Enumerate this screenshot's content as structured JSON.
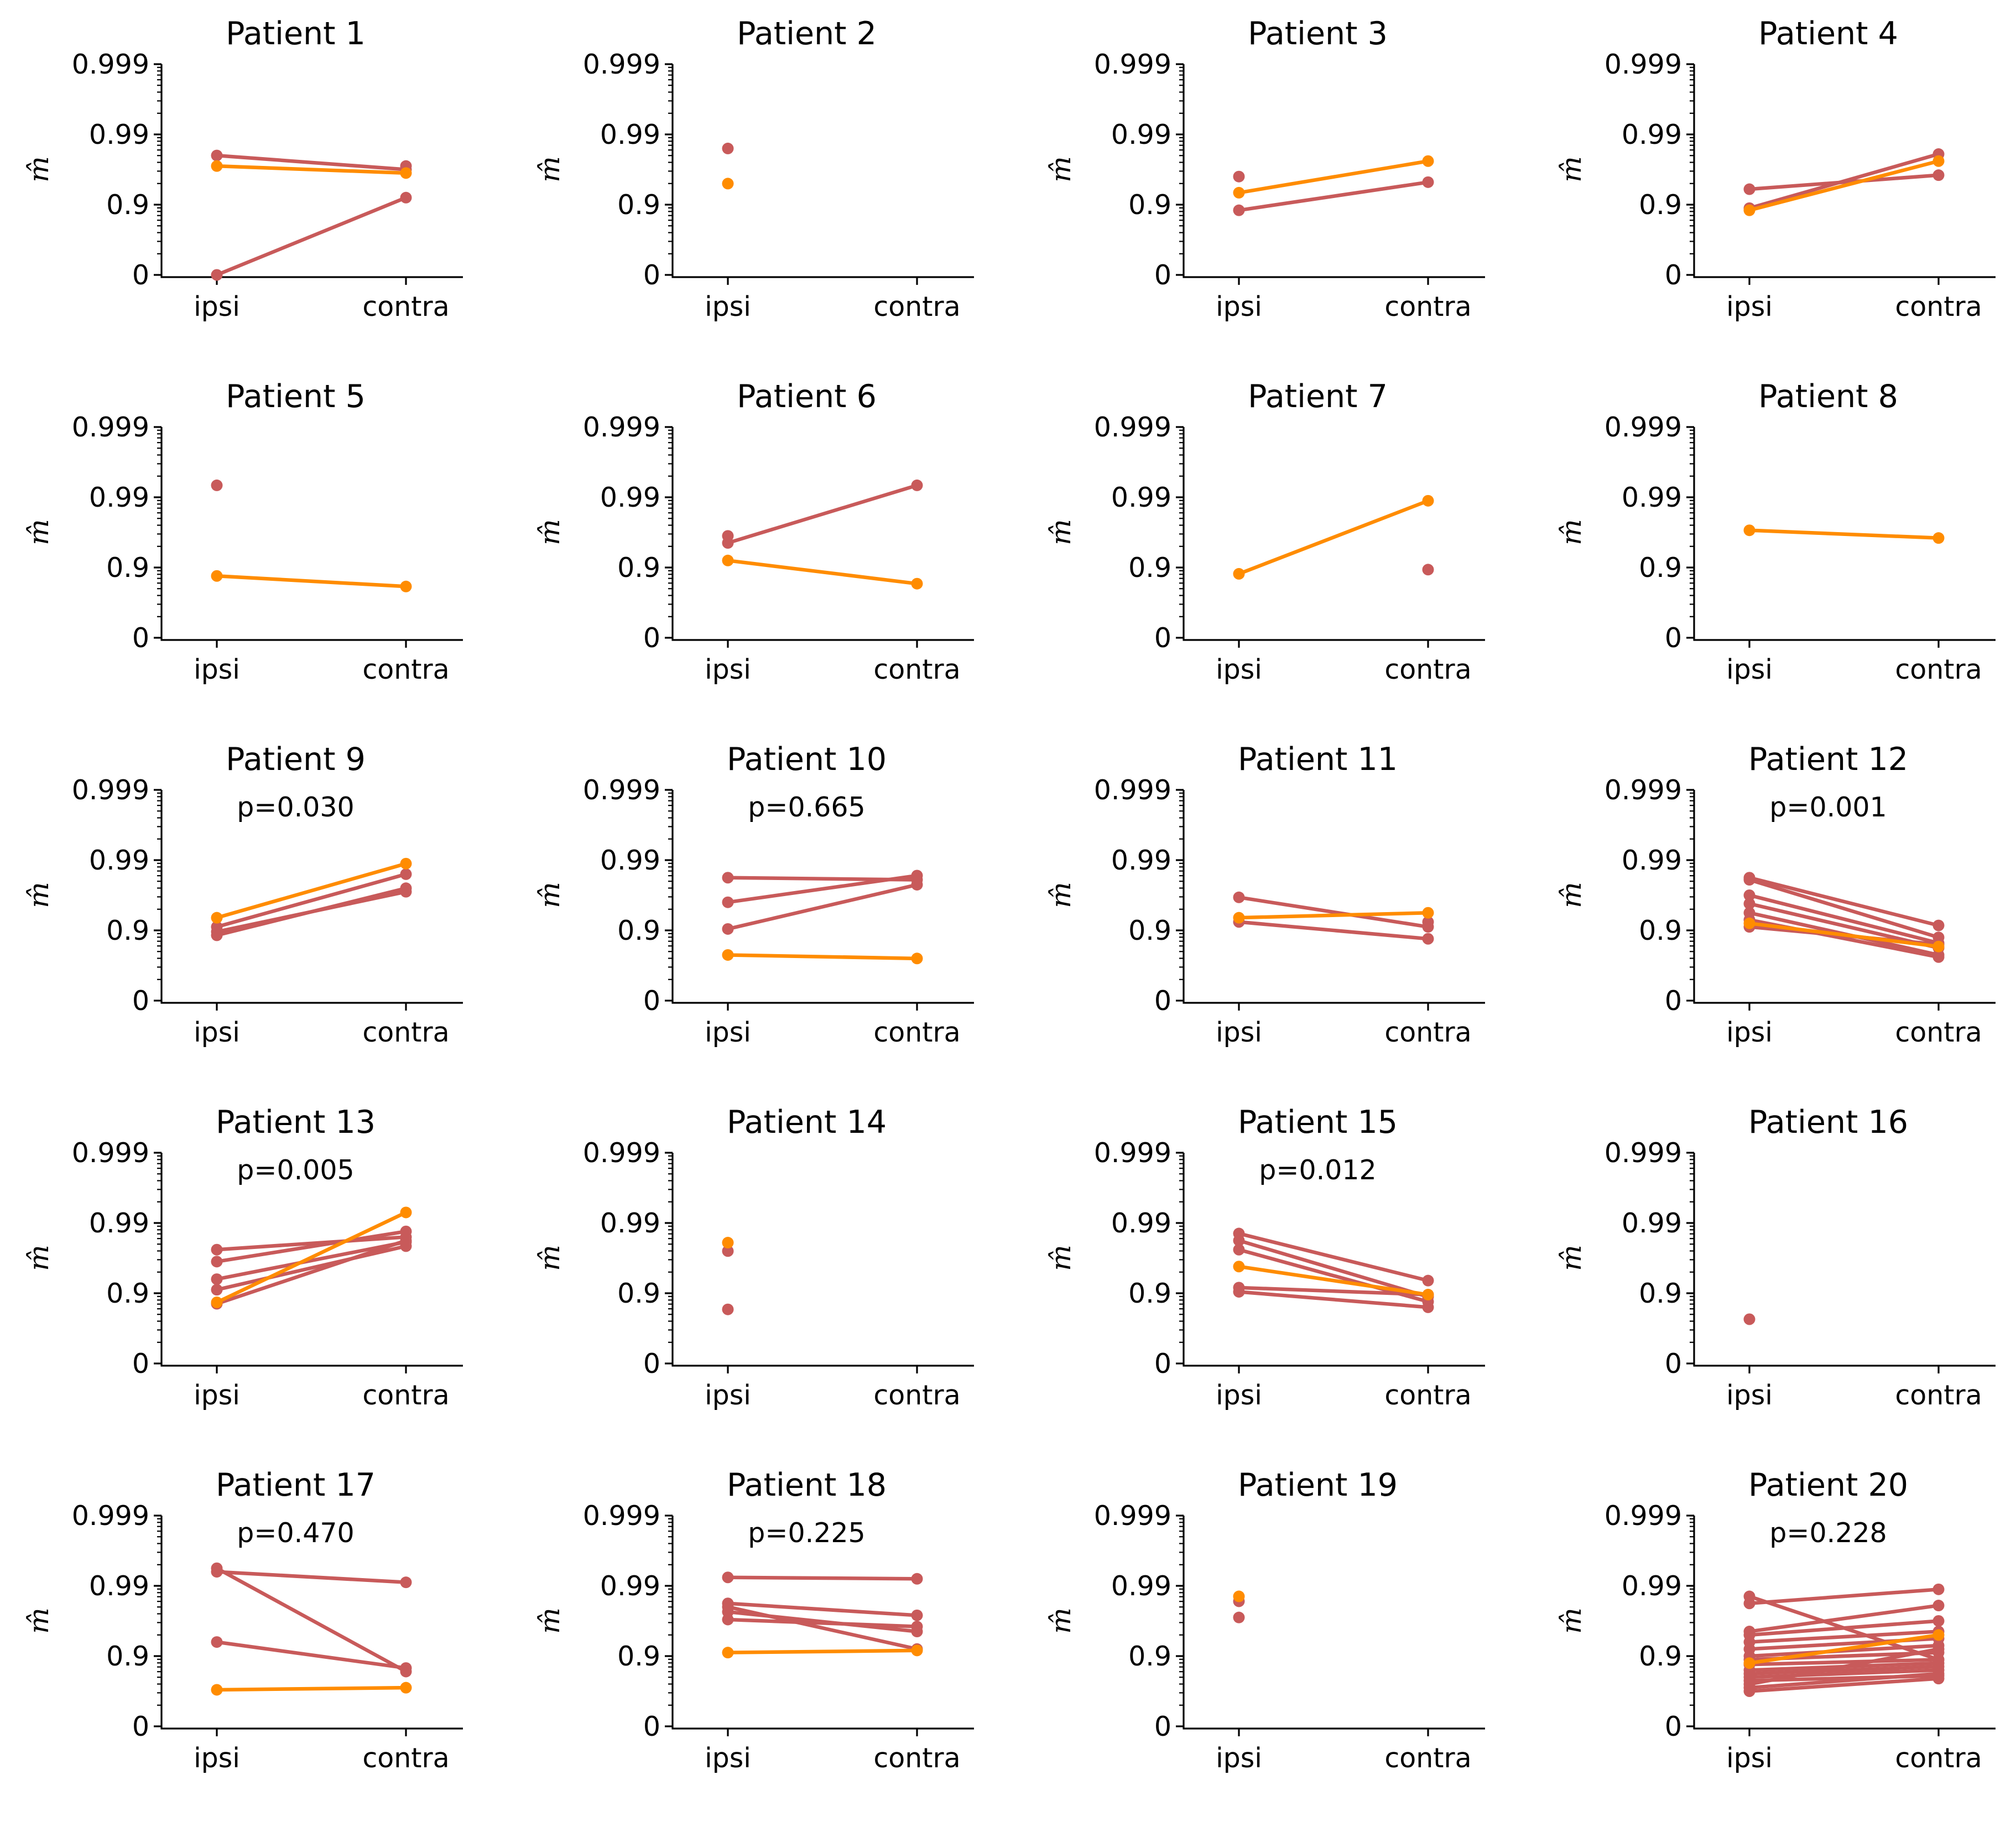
{
  "figure": {
    "y_ticks": [
      "0.999",
      "0.99",
      "0.9",
      "0"
    ],
    "y_axis_label": "m̂",
    "x_categories": [
      "ipsi",
      "contra"
    ]
  },
  "colors": {
    "primary_series": "#c85a5a",
    "highlight_series": "#ff8c00"
  },
  "chart_data": [
    {
      "type": "line",
      "title": "Patient 1",
      "p_value": "",
      "xlabel": "",
      "ylabel": "m̂",
      "categories": [
        "ipsi",
        "contra"
      ],
      "ylim": [
        0,
        3
      ],
      "series": [
        {
          "color": "primary",
          "values": [
            1.7,
            1.5
          ]
        },
        {
          "color": "primary",
          "values": [
            0.0,
            1.1
          ]
        },
        {
          "color": "primary",
          "values": [
            null,
            1.55
          ]
        },
        {
          "color": "highlight",
          "values": [
            1.55,
            1.45
          ]
        }
      ]
    },
    {
      "type": "line",
      "title": "Patient 2",
      "p_value": "",
      "xlabel": "",
      "ylabel": "m̂",
      "categories": [
        "ipsi",
        "contra"
      ],
      "ylim": [
        0,
        3
      ],
      "series": [
        {
          "color": "primary",
          "values": [
            1.8,
            null
          ]
        },
        {
          "color": "highlight",
          "values": [
            1.3,
            null
          ]
        }
      ]
    },
    {
      "type": "line",
      "title": "Patient 3",
      "p_value": "",
      "xlabel": "",
      "ylabel": "m̂",
      "categories": [
        "ipsi",
        "contra"
      ],
      "ylim": [
        0,
        3
      ],
      "series": [
        {
          "color": "primary",
          "values": [
            0.92,
            1.32
          ]
        },
        {
          "color": "primary",
          "values": [
            1.4,
            null
          ]
        },
        {
          "color": "highlight",
          "values": [
            1.17,
            1.62
          ]
        }
      ]
    },
    {
      "type": "line",
      "title": "Patient 4",
      "p_value": "",
      "xlabel": "",
      "ylabel": "m̂",
      "categories": [
        "ipsi",
        "contra"
      ],
      "ylim": [
        0,
        3
      ],
      "series": [
        {
          "color": "primary",
          "values": [
            1.22,
            1.42
          ]
        },
        {
          "color": "primary",
          "values": [
            0.95,
            1.72
          ]
        },
        {
          "color": "highlight",
          "values": [
            0.92,
            1.62
          ]
        }
      ]
    },
    {
      "type": "line",
      "title": "Patient 5",
      "p_value": "",
      "xlabel": "",
      "ylabel": "m̂",
      "categories": [
        "ipsi",
        "contra"
      ],
      "ylim": [
        0,
        3
      ],
      "series": [
        {
          "color": "primary",
          "values": [
            2.17,
            null
          ]
        },
        {
          "color": "highlight",
          "values": [
            0.88,
            0.73
          ]
        }
      ]
    },
    {
      "type": "line",
      "title": "Patient 6",
      "p_value": "",
      "xlabel": "",
      "ylabel": "m̂",
      "categories": [
        "ipsi",
        "contra"
      ],
      "ylim": [
        0,
        3
      ],
      "series": [
        {
          "color": "primary",
          "values": [
            1.35,
            2.17
          ]
        },
        {
          "color": "primary",
          "values": [
            1.45,
            null
          ]
        },
        {
          "color": "highlight",
          "values": [
            1.1,
            0.77
          ]
        }
      ]
    },
    {
      "type": "line",
      "title": "Patient 7",
      "p_value": "",
      "xlabel": "",
      "ylabel": "m̂",
      "categories": [
        "ipsi",
        "contra"
      ],
      "ylim": [
        0,
        3
      ],
      "series": [
        {
          "color": "primary",
          "values": [
            null,
            0.97
          ]
        },
        {
          "color": "highlight",
          "values": [
            0.91,
            1.95
          ]
        }
      ]
    },
    {
      "type": "line",
      "title": "Patient 8",
      "p_value": "",
      "xlabel": "",
      "ylabel": "m̂",
      "categories": [
        "ipsi",
        "contra"
      ],
      "ylim": [
        0,
        3
      ],
      "series": [
        {
          "color": "highlight",
          "values": [
            1.53,
            1.42
          ]
        }
      ]
    },
    {
      "type": "line",
      "title": "Patient 9",
      "p_value": "p=0.030",
      "xlabel": "",
      "ylabel": "m̂",
      "categories": [
        "ipsi",
        "contra"
      ],
      "ylim": [
        0,
        3
      ],
      "series": [
        {
          "color": "primary",
          "values": [
            0.98,
            1.55
          ]
        },
        {
          "color": "primary",
          "values": [
            1.05,
            1.8
          ]
        },
        {
          "color": "primary",
          "values": [
            0.93,
            1.6
          ]
        },
        {
          "color": "highlight",
          "values": [
            1.18,
            1.95
          ]
        }
      ]
    },
    {
      "type": "line",
      "title": "Patient 10",
      "p_value": "p=0.665",
      "xlabel": "",
      "ylabel": "m̂",
      "categories": [
        "ipsi",
        "contra"
      ],
      "ylim": [
        0,
        3
      ],
      "series": [
        {
          "color": "primary",
          "values": [
            1.75,
            1.72
          ]
        },
        {
          "color": "primary",
          "values": [
            1.4,
            1.78
          ]
        },
        {
          "color": "primary",
          "values": [
            1.02,
            1.65
          ]
        },
        {
          "color": "highlight",
          "values": [
            0.65,
            0.6
          ]
        }
      ]
    },
    {
      "type": "line",
      "title": "Patient 11",
      "p_value": "",
      "xlabel": "",
      "ylabel": "m̂",
      "categories": [
        "ipsi",
        "contra"
      ],
      "ylim": [
        0,
        3
      ],
      "series": [
        {
          "color": "primary",
          "values": [
            1.47,
            1.05
          ]
        },
        {
          "color": "primary",
          "values": [
            1.12,
            0.88
          ]
        },
        {
          "color": "primary",
          "values": [
            null,
            1.12
          ]
        },
        {
          "color": "highlight",
          "values": [
            1.18,
            1.25
          ]
        }
      ]
    },
    {
      "type": "line",
      "title": "Patient 12",
      "p_value": "p=0.001",
      "xlabel": "",
      "ylabel": "m̂",
      "categories": [
        "ipsi",
        "contra"
      ],
      "ylim": [
        0,
        3
      ],
      "series": [
        {
          "color": "primary",
          "values": [
            1.75,
            1.07
          ]
        },
        {
          "color": "primary",
          "values": [
            1.72,
            0.9
          ]
        },
        {
          "color": "primary",
          "values": [
            1.5,
            0.82
          ]
        },
        {
          "color": "primary",
          "values": [
            1.38,
            0.75
          ]
        },
        {
          "color": "primary",
          "values": [
            1.25,
            0.65
          ]
        },
        {
          "color": "primary",
          "values": [
            1.15,
            0.62
          ]
        },
        {
          "color": "primary",
          "values": [
            1.05,
            0.8
          ]
        },
        {
          "color": "highlight",
          "values": [
            1.1,
            0.77
          ]
        }
      ]
    },
    {
      "type": "line",
      "title": "Patient 13",
      "p_value": "p=0.005",
      "xlabel": "",
      "ylabel": "m̂",
      "categories": [
        "ipsi",
        "contra"
      ],
      "ylim": [
        0,
        3
      ],
      "series": [
        {
          "color": "primary",
          "values": [
            1.62,
            1.8
          ]
        },
        {
          "color": "primary",
          "values": [
            1.45,
            1.88
          ]
        },
        {
          "color": "primary",
          "values": [
            1.2,
            1.73
          ]
        },
        {
          "color": "primary",
          "values": [
            1.05,
            1.67
          ]
        },
        {
          "color": "primary",
          "values": [
            0.85,
            1.75
          ]
        },
        {
          "color": "highlight",
          "values": [
            0.87,
            2.15
          ]
        }
      ]
    },
    {
      "type": "line",
      "title": "Patient 14",
      "p_value": "",
      "xlabel": "",
      "ylabel": "m̂",
      "categories": [
        "ipsi",
        "contra"
      ],
      "ylim": [
        0,
        3
      ],
      "series": [
        {
          "color": "primary",
          "values": [
            1.6,
            null
          ]
        },
        {
          "color": "primary",
          "values": [
            0.77,
            null
          ]
        },
        {
          "color": "highlight",
          "values": [
            1.72,
            null
          ]
        }
      ]
    },
    {
      "type": "line",
      "title": "Patient 15",
      "p_value": "p=0.012",
      "xlabel": "",
      "ylabel": "m̂",
      "categories": [
        "ipsi",
        "contra"
      ],
      "ylim": [
        0,
        3
      ],
      "series": [
        {
          "color": "primary",
          "values": [
            1.85,
            1.18
          ]
        },
        {
          "color": "primary",
          "values": [
            1.75,
            0.95
          ]
        },
        {
          "color": "primary",
          "values": [
            1.62,
            0.88
          ]
        },
        {
          "color": "primary",
          "values": [
            1.08,
            0.98
          ]
        },
        {
          "color": "primary",
          "values": [
            1.02,
            0.8
          ]
        },
        {
          "color": "highlight",
          "values": [
            1.38,
            0.98
          ]
        }
      ]
    },
    {
      "type": "line",
      "title": "Patient 16",
      "p_value": "",
      "xlabel": "",
      "ylabel": "m̂",
      "categories": [
        "ipsi",
        "contra"
      ],
      "ylim": [
        0,
        3
      ],
      "series": [
        {
          "color": "primary",
          "values": [
            0.63,
            null
          ]
        }
      ]
    },
    {
      "type": "line",
      "title": "Patient 17",
      "p_value": "p=0.470",
      "xlabel": "",
      "ylabel": "m̂",
      "categories": [
        "ipsi",
        "contra"
      ],
      "ylim": [
        0,
        3
      ],
      "series": [
        {
          "color": "primary",
          "values": [
            2.2,
            2.05
          ]
        },
        {
          "color": "primary",
          "values": [
            2.25,
            0.78
          ]
        },
        {
          "color": "primary",
          "values": [
            1.2,
            0.83
          ]
        },
        {
          "color": "highlight",
          "values": [
            0.52,
            0.55
          ]
        }
      ]
    },
    {
      "type": "line",
      "title": "Patient 18",
      "p_value": "p=0.225",
      "xlabel": "",
      "ylabel": "m̂",
      "categories": [
        "ipsi",
        "contra"
      ],
      "ylim": [
        0,
        3
      ],
      "series": [
        {
          "color": "primary",
          "values": [
            2.12,
            2.1
          ]
        },
        {
          "color": "primary",
          "values": [
            1.75,
            1.58
          ]
        },
        {
          "color": "primary",
          "values": [
            1.7,
            1.1
          ]
        },
        {
          "color": "primary",
          "values": [
            1.63,
            1.35
          ]
        },
        {
          "color": "primary",
          "values": [
            1.52,
            1.42
          ]
        },
        {
          "color": "highlight",
          "values": [
            1.05,
            1.08
          ]
        }
      ]
    },
    {
      "type": "line",
      "title": "Patient 19",
      "p_value": "",
      "xlabel": "",
      "ylabel": "m̂",
      "categories": [
        "ipsi",
        "contra"
      ],
      "ylim": [
        0,
        3
      ],
      "series": [
        {
          "color": "primary",
          "values": [
            1.55,
            null
          ]
        },
        {
          "color": "primary",
          "values": [
            1.78,
            null
          ]
        },
        {
          "color": "highlight",
          "values": [
            1.85,
            null
          ]
        }
      ]
    },
    {
      "type": "line",
      "title": "Patient 20",
      "p_value": "p=0.228",
      "xlabel": "",
      "ylabel": "m̂",
      "categories": [
        "ipsi",
        "contra"
      ],
      "ylim": [
        0,
        3
      ],
      "series": [
        {
          "color": "primary",
          "values": [
            1.85,
            0.95
          ]
        },
        {
          "color": "primary",
          "values": [
            1.75,
            1.95
          ]
        },
        {
          "color": "primary",
          "values": [
            1.35,
            1.72
          ]
        },
        {
          "color": "primary",
          "values": [
            1.3,
            1.5
          ]
        },
        {
          "color": "primary",
          "values": [
            1.2,
            1.35
          ]
        },
        {
          "color": "primary",
          "values": [
            1.1,
            1.25
          ]
        },
        {
          "color": "primary",
          "values": [
            1.0,
            1.15
          ]
        },
        {
          "color": "primary",
          "values": [
            0.95,
            1.05
          ]
        },
        {
          "color": "primary",
          "values": [
            0.88,
            0.95
          ]
        },
        {
          "color": "primary",
          "values": [
            0.8,
            0.9
          ]
        },
        {
          "color": "primary",
          "values": [
            0.75,
            0.85
          ]
        },
        {
          "color": "primary",
          "values": [
            0.7,
            0.8
          ]
        },
        {
          "color": "primary",
          "values": [
            0.65,
            0.72
          ]
        },
        {
          "color": "primary",
          "values": [
            0.6,
            1.1
          ]
        },
        {
          "color": "primary",
          "values": [
            0.55,
            0.75
          ]
        },
        {
          "color": "primary",
          "values": [
            0.5,
            0.68
          ]
        },
        {
          "color": "highlight",
          "values": [
            0.9,
            1.3
          ]
        }
      ]
    }
  ]
}
